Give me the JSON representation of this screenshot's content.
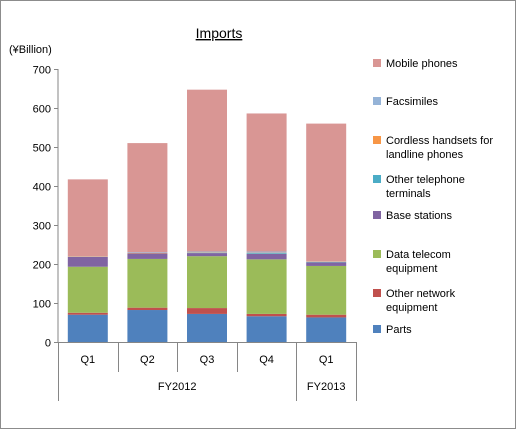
{
  "chart_data": {
    "type": "bar",
    "stacked": true,
    "title": "Imports",
    "ylabel": "(¥Billion)",
    "ylim": [
      0,
      700
    ],
    "ytick_step": 100,
    "grid": false,
    "legend_position": "right",
    "categories": [
      "Q1",
      "Q2",
      "Q3",
      "Q4",
      "Q1"
    ],
    "fiscal_years": [
      {
        "label": "FY2012",
        "quarters": 4
      },
      {
        "label": "FY2013",
        "quarters": 1
      }
    ],
    "series": [
      {
        "name": "Parts",
        "color": "#4f81bd",
        "values": [
          70,
          82,
          72,
          66,
          63
        ]
      },
      {
        "name": "Other network equipment",
        "color": "#c0504d",
        "values": [
          5,
          6,
          15,
          6,
          7
        ]
      },
      {
        "name": "Data telecom equipment",
        "color": "#9bbb59",
        "values": [
          118,
          125,
          133,
          140,
          125
        ]
      },
      {
        "name": "Base stations",
        "color": "#8064a2",
        "values": [
          25,
          14,
          8,
          14,
          9
        ]
      },
      {
        "name": "Other telephone terminals",
        "color": "#4bacc6",
        "values": [
          0,
          0,
          1,
          2,
          1
        ]
      },
      {
        "name": "Cordless handsets for landline phones",
        "color": "#f79646",
        "values": [
          1,
          1,
          1,
          1,
          1
        ]
      },
      {
        "name": "Facsimiles",
        "color": "#95b3d7",
        "values": [
          1,
          2,
          2,
          3,
          1
        ]
      },
      {
        "name": "Mobile phones",
        "color": "#d99694",
        "values": [
          197,
          280,
          415,
          354,
          353
        ]
      }
    ]
  }
}
